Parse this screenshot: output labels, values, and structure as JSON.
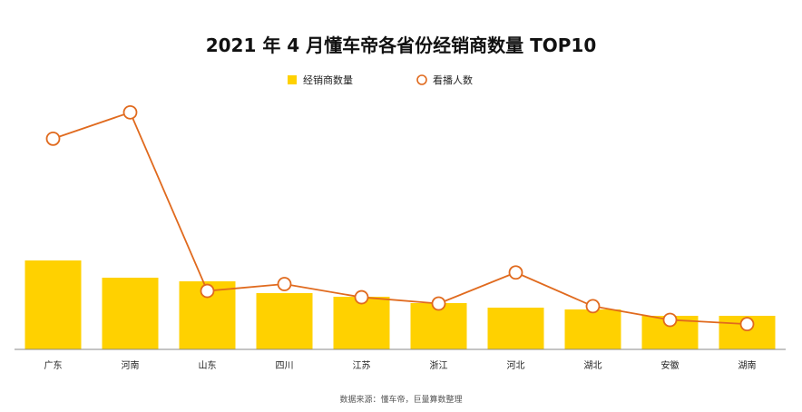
{
  "chart_data": {
    "type": "bar",
    "title": "2021 年 4 月懂车帝各省份经销商数量 TOP10",
    "categories": [
      "广东",
      "河南",
      "山东",
      "四川",
      "江苏",
      "浙江",
      "河北",
      "湖北",
      "安徽",
      "湖南"
    ],
    "series": [
      {
        "name": "经销商数量",
        "type": "bar",
        "color": "#FFD100",
        "axis": "left",
        "values": [
          98,
          79,
          75,
          62,
          58,
          51,
          46,
          44,
          37,
          37
        ]
      },
      {
        "name": "看播人数",
        "type": "line",
        "color": "#E06A1E",
        "axis": "right",
        "values": [
          400,
          450,
          111,
          124,
          99,
          87,
          146,
          82,
          56,
          48
        ]
      }
    ],
    "legend_position": "top-center",
    "grid": false,
    "y_axes_visible": false,
    "source_note": "数据来源：懂车帝，巨量算数整理"
  }
}
